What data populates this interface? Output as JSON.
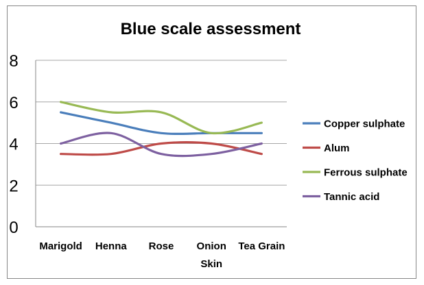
{
  "chart_data": {
    "type": "line",
    "title": "Blue scale assessment",
    "categories": [
      "Marigold",
      "Henna",
      "Rose",
      "Onion Skin",
      "Tea Grain"
    ],
    "category_lines": [
      [
        "Marigold"
      ],
      [
        "Henna"
      ],
      [
        "Rose"
      ],
      [
        "Onion",
        "Skin"
      ],
      [
        "Tea Grain"
      ]
    ],
    "ylim": [
      0,
      8
    ],
    "yticks": [
      0,
      2,
      4,
      6,
      8
    ],
    "grid": true,
    "legend_position": "right",
    "smooth": true,
    "series": [
      {
        "name": "Copper sulphate",
        "color": "#4a7ebb",
        "values": [
          5.5,
          5.0,
          4.5,
          4.5,
          4.5
        ]
      },
      {
        "name": "Alum",
        "color": "#be4b48",
        "values": [
          3.5,
          3.5,
          4.0,
          4.0,
          3.5
        ]
      },
      {
        "name": "Ferrous sulphate",
        "color": "#98b954",
        "values": [
          6.0,
          5.5,
          5.5,
          4.5,
          5.0
        ]
      },
      {
        "name": "Tannic acid",
        "color": "#7d60a0",
        "values": [
          4.0,
          4.5,
          3.5,
          3.5,
          4.0
        ]
      }
    ]
  }
}
